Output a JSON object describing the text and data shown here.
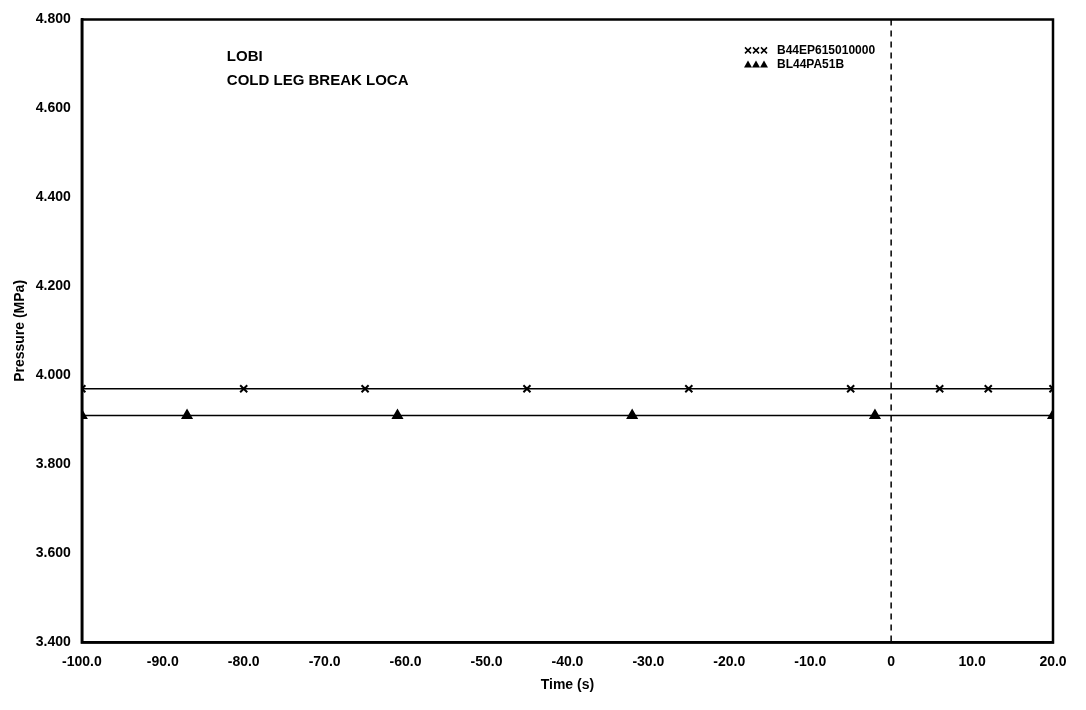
{
  "chart_data": {
    "type": "line",
    "xlabel": "Time (s)",
    "ylabel": "Pressure (MPa)",
    "annotations": [
      "LOBI",
      "COLD LEG BREAK LOCA"
    ],
    "xlim": [
      -100,
      20
    ],
    "ylim": [
      3.4,
      4.8
    ],
    "xticks": [
      {
        "value": -100,
        "label": "-100.0"
      },
      {
        "value": -90,
        "label": "-90.0"
      },
      {
        "value": -80,
        "label": "-80.0"
      },
      {
        "value": -70,
        "label": "-70.0"
      },
      {
        "value": -60,
        "label": "-60.0"
      },
      {
        "value": -50,
        "label": "-50.0"
      },
      {
        "value": -40,
        "label": "-40.0"
      },
      {
        "value": -30,
        "label": "-30.0"
      },
      {
        "value": -20,
        "label": "-20.0"
      },
      {
        "value": -10,
        "label": "-10.0"
      },
      0,
      {
        "value": 10,
        "label": "10.0"
      },
      {
        "value": 20,
        "label": "20.0"
      }
    ],
    "yticks": [
      {
        "value": 3.4,
        "label": "3.400"
      },
      {
        "value": 3.6,
        "label": "3.600"
      },
      {
        "value": 3.8,
        "label": "3.800"
      },
      {
        "value": 4.0,
        "label": "4.000"
      },
      {
        "value": 4.2,
        "label": "4.200"
      },
      {
        "value": 4.4,
        "label": "4.400"
      },
      {
        "value": 4.6,
        "label": "4.600"
      },
      {
        "value": 4.8,
        "label": "4.800"
      }
    ],
    "series": [
      {
        "name": "B44EP615010000",
        "color": "#000000",
        "marker": "cross",
        "x": [
          -100,
          -80,
          -65,
          -45,
          -25,
          -5,
          6,
          12,
          20
        ],
        "values": [
          3.97,
          3.97,
          3.97,
          3.97,
          3.97,
          3.97,
          3.97,
          3.97,
          3.97
        ]
      },
      {
        "name": "BL44PA51B",
        "color": "#000000",
        "marker": "triangle",
        "x": [
          -100,
          -87,
          -61,
          -32,
          -2,
          20
        ],
        "values": [
          3.91,
          3.91,
          3.91,
          3.91,
          3.91,
          3.91
        ]
      }
    ],
    "ref_lines": [
      {
        "axis": "x",
        "value": 0,
        "color": "#000000",
        "line_style": "dashed"
      }
    ],
    "grid": false,
    "legend": "top right",
    "line_style": "solid"
  }
}
